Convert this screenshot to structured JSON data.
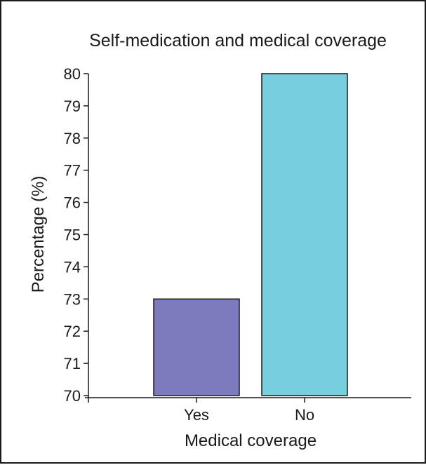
{
  "chart_data": {
    "type": "bar",
    "title": "Self-medication and medical coverage",
    "xlabel": "Medical coverage",
    "ylabel": "Percentage (%)",
    "categories": [
      "Yes",
      "No"
    ],
    "values": [
      73,
      80
    ],
    "ylim": [
      70,
      80
    ],
    "yticks": [
      70,
      71,
      72,
      73,
      74,
      75,
      76,
      77,
      78,
      79,
      80
    ],
    "colors": [
      "#7b7bbd",
      "#76cedf"
    ],
    "grid": false,
    "legend": "none"
  }
}
